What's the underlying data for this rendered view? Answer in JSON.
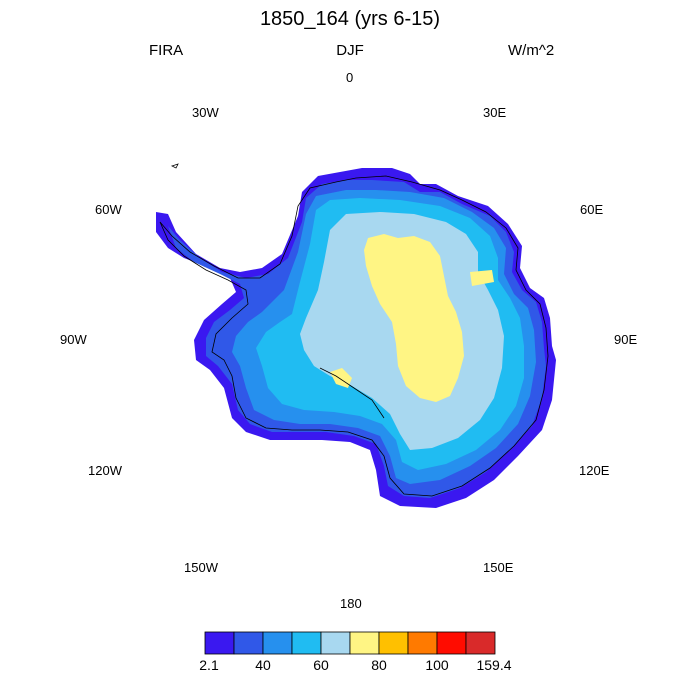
{
  "title": "1850_164 (yrs 6-15)",
  "left_label": "FIRA",
  "center_label": "DJF",
  "right_label": "W/m^2",
  "longitude_labels": {
    "lon_0": "0",
    "lon_30e": "30E",
    "lon_60e": "60E",
    "lon_90e": "90E",
    "lon_120e": "120E",
    "lon_150e": "150E",
    "lon_180": "180",
    "lon_150w": "150W",
    "lon_120w": "120W",
    "lon_90w": "90W",
    "lon_60w": "60W",
    "lon_30w": "30W"
  },
  "colorbar": {
    "colors": [
      "#3a18f0",
      "#3058e8",
      "#2690ee",
      "#20bcf2",
      "#a8d8f0",
      "#fff584",
      "#ffc000",
      "#ff7a00",
      "#ff0c00",
      "#d92a2a"
    ],
    "labels": [
      "2.1",
      "40",
      "60",
      "80",
      "100",
      "159.4"
    ]
  },
  "field_colors": {
    "coast_darkest": "#3a18f0",
    "coast_dark": "#3058e8",
    "mid_blue": "#2690ee",
    "light_blue": "#20bcf2",
    "pale_blue": "#a8d8f0",
    "yellow": "#fff584"
  }
}
